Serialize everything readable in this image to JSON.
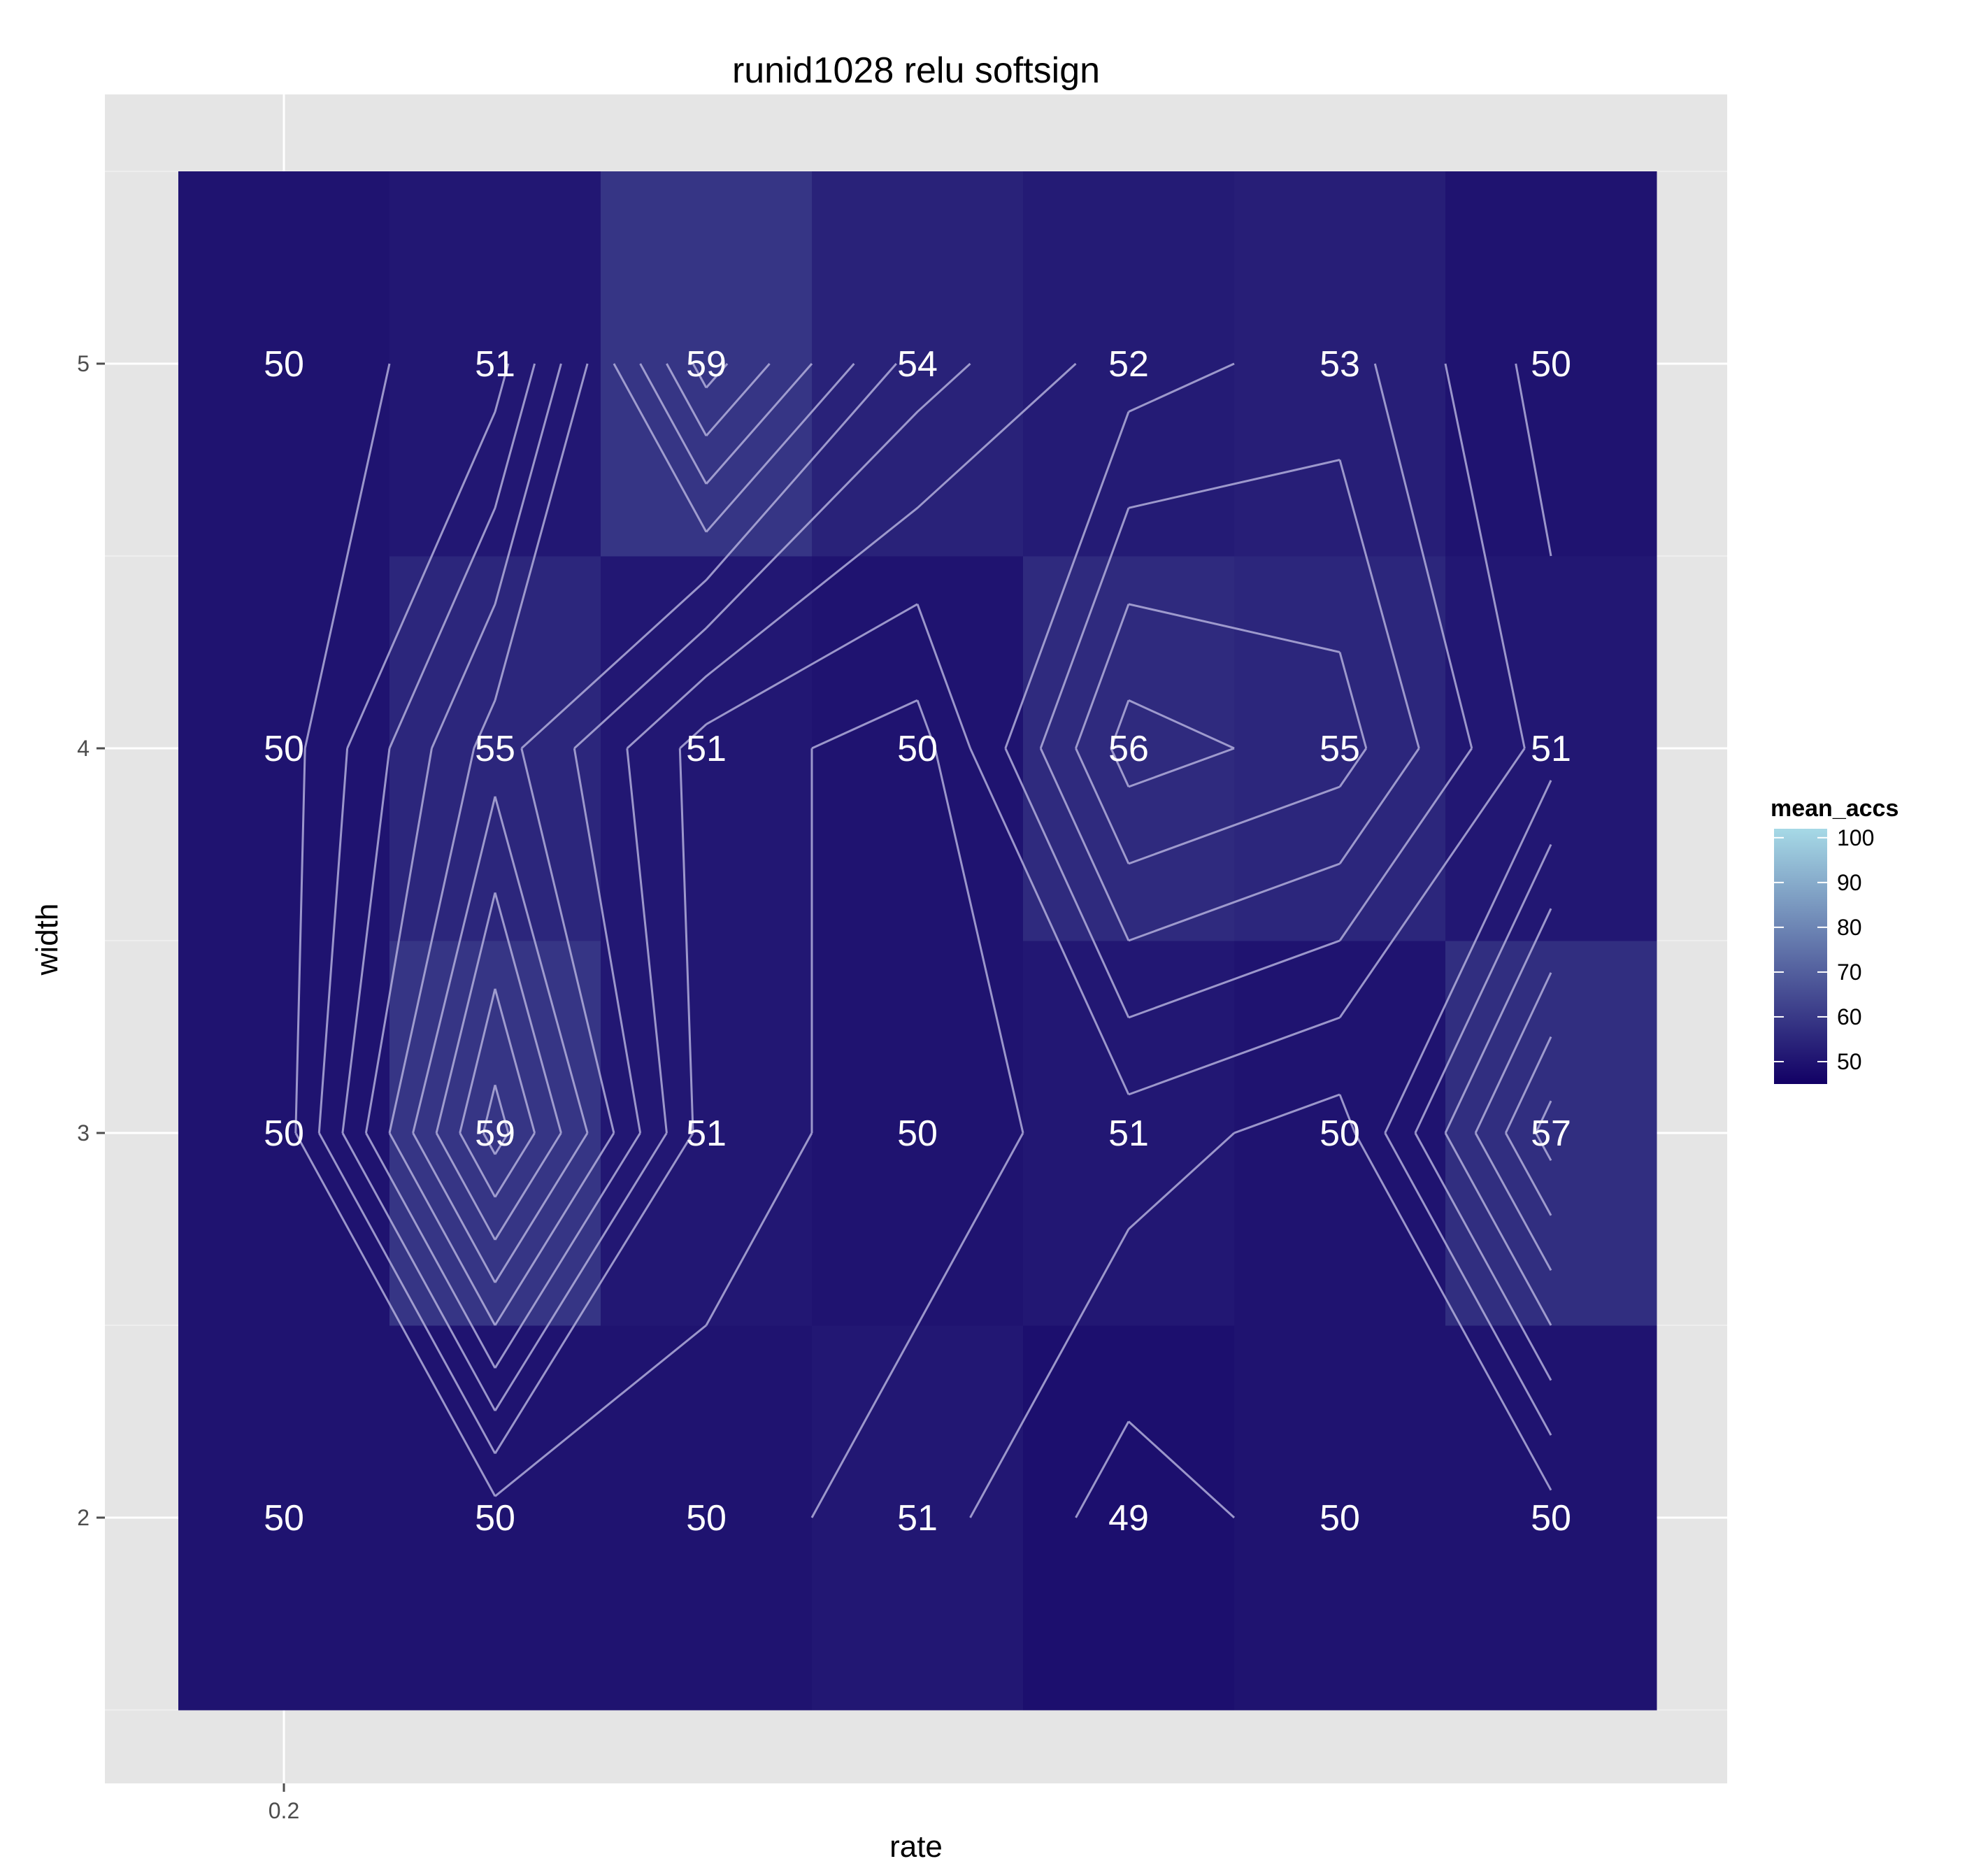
{
  "chart_data": {
    "type": "heatmap",
    "title": "runid1028 relu softsign",
    "xlabel": "rate",
    "ylabel": "width",
    "x_tick_labels": [
      "0.2"
    ],
    "y": [
      2,
      3,
      4,
      5
    ],
    "y_tick_labels": [
      "2",
      "3",
      "4",
      "5"
    ],
    "columns": 7,
    "values": [
      [
        50,
        50,
        50,
        51,
        49,
        50,
        50
      ],
      [
        50,
        59,
        51,
        50,
        51,
        50,
        57
      ],
      [
        50,
        55,
        51,
        50,
        56,
        55,
        51
      ],
      [
        50,
        51,
        59,
        54,
        52,
        53,
        50
      ]
    ],
    "legend": {
      "title": "mean_accs",
      "ticks": [
        "100",
        "90",
        "80",
        "70",
        "60",
        "50"
      ],
      "tick_values": [
        100,
        90,
        80,
        70,
        60,
        50
      ],
      "range": [
        45,
        102
      ],
      "low_color": "#120065",
      "high_color": "#a6d9e6"
    },
    "contours": true,
    "contour_color": "#b2aedb",
    "panel_background": "#e5e5e5",
    "grid": true
  }
}
